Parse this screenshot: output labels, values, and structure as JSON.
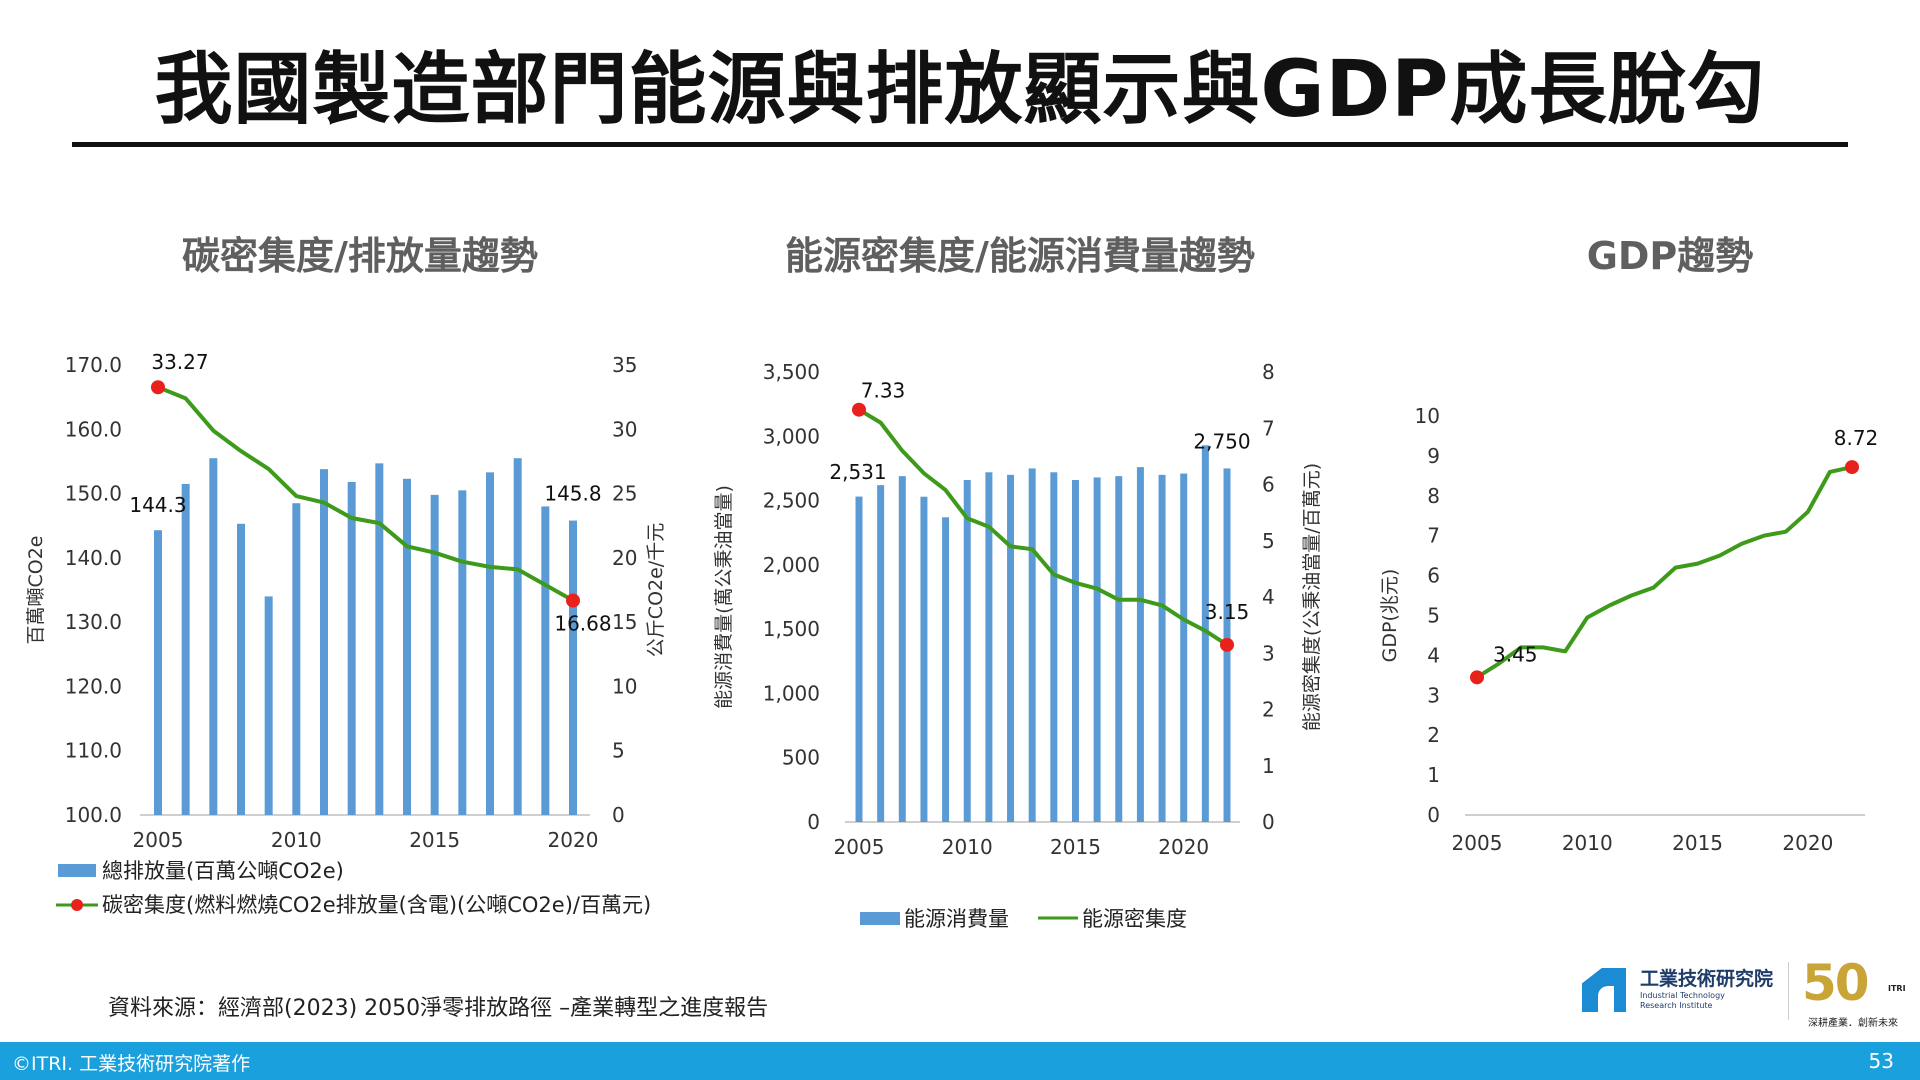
{
  "slide": {
    "title": "我國製造部門能源與排放顯示與GDP成長脫勾",
    "source_note": "資料來源：經濟部(2023) 2050淨零排放路徑 –產業轉型之進度報告",
    "footer_copyright": "©ITRI. 工業技術研究院著作",
    "page_number": "53",
    "colors": {
      "bar": "#5b9bd5",
      "line": "#3d9a1a",
      "marker": "#e8211c",
      "footer": "#1aa0dc",
      "heading": "#5f5f5f"
    }
  },
  "logos": {
    "itri_name_zh": "工業技術研究院",
    "itri_name_en": "Industrial Technology Research Institute",
    "anniversary_number": "50",
    "anniversary_itri": "ITRI",
    "anniversary_slogan": "深耕產業．創新未來"
  },
  "chart_data": [
    {
      "type": "bar+line",
      "title": "碳密集度/排放量趨勢",
      "ylabel_left": "百萬噸CO2e",
      "ylabel_right": "公斤CO2e/千元",
      "ylim_left": [
        100,
        170
      ],
      "ylim_right": [
        0,
        35
      ],
      "y_left_ticks": [
        "100.0",
        "110.0",
        "120.0",
        "130.0",
        "140.0",
        "150.0",
        "160.0",
        "170.0"
      ],
      "y_right_ticks": [
        "0",
        "5",
        "10",
        "15",
        "20",
        "25",
        "30",
        "35"
      ],
      "x_ticks": [
        "2005",
        "2010",
        "2015",
        "2020"
      ],
      "x": [
        2005,
        2006,
        2007,
        2008,
        2009,
        2010,
        2011,
        2012,
        2013,
        2014,
        2015,
        2016,
        2017,
        2018,
        2019,
        2020
      ],
      "series": [
        {
          "name": "總排放量(百萬公噸CO2e)",
          "kind": "bar",
          "axis": "left",
          "values": [
            144.3,
            151.5,
            155.5,
            145.3,
            134,
            148.5,
            153.8,
            151.8,
            154.7,
            152.3,
            149.8,
            150.5,
            153.3,
            155.5,
            148,
            145.8
          ]
        },
        {
          "name": "碳密集度(燃料燃燒CO2e排放量(含電)(公噸CO2e)/百萬元)",
          "kind": "line",
          "axis": "right",
          "values": [
            33.27,
            32.4,
            29.9,
            28.3,
            26.9,
            24.8,
            24.3,
            23.1,
            22.7,
            20.9,
            20.4,
            19.7,
            19.3,
            19.1,
            17.9,
            16.68
          ]
        }
      ],
      "data_labels": [
        {
          "text": "33.27",
          "series": 1,
          "index": 0
        },
        {
          "text": "144.3",
          "series": 0,
          "index": 0
        },
        {
          "text": "145.8",
          "series": 0,
          "index": 15
        },
        {
          "text": "16.68",
          "series": 1,
          "index": 15
        }
      ],
      "legend": "bottom-left"
    },
    {
      "type": "bar+line",
      "title": "能源密集度/能源消費量趨勢",
      "ylabel_left": "能源消費量(萬公秉油當量)",
      "ylabel_right": "能源密集度(公秉油當量/百萬元)",
      "ylim_left": [
        0,
        3500
      ],
      "ylim_right": [
        0,
        8
      ],
      "y_left_ticks": [
        "0",
        "500",
        "1,000",
        "1,500",
        "2,000",
        "2,500",
        "3,000",
        "3,500"
      ],
      "y_right_ticks": [
        "0",
        "1",
        "2",
        "3",
        "4",
        "5",
        "6",
        "7",
        "8"
      ],
      "x_ticks": [
        "2005",
        "2010",
        "2015",
        "2020"
      ],
      "x": [
        2005,
        2006,
        2007,
        2008,
        2009,
        2010,
        2011,
        2012,
        2013,
        2014,
        2015,
        2016,
        2017,
        2018,
        2019,
        2020,
        2021,
        2022
      ],
      "series": [
        {
          "name": "能源消費量",
          "kind": "bar",
          "axis": "left",
          "values": [
            2531,
            2620,
            2690,
            2530,
            2370,
            2660,
            2720,
            2700,
            2750,
            2720,
            2660,
            2680,
            2690,
            2760,
            2700,
            2710,
            2930,
            2750
          ]
        },
        {
          "name": "能源密集度",
          "kind": "line",
          "axis": "right",
          "values": [
            7.33,
            7.1,
            6.6,
            6.2,
            5.9,
            5.4,
            5.25,
            4.9,
            4.85,
            4.4,
            4.25,
            4.15,
            3.95,
            3.95,
            3.85,
            3.6,
            3.4,
            3.15
          ]
        }
      ],
      "data_labels": [
        {
          "text": "7.33",
          "series": 1,
          "index": 0
        },
        {
          "text": "2,531",
          "series": 0,
          "index": 0
        },
        {
          "text": "2,750",
          "series": 0,
          "index": 17
        },
        {
          "text": "3.15",
          "series": 1,
          "index": 17
        }
      ],
      "legend": "bottom"
    },
    {
      "type": "line",
      "title": "GDP趨勢",
      "ylabel": "GDP(兆元)",
      "ylim": [
        0,
        10
      ],
      "y_ticks": [
        "0",
        "1",
        "2",
        "3",
        "4",
        "5",
        "6",
        "7",
        "8",
        "9",
        "10"
      ],
      "x_ticks": [
        "2005",
        "2010",
        "2015",
        "2020"
      ],
      "x": [
        2005,
        2006,
        2007,
        2008,
        2009,
        2010,
        2011,
        2012,
        2013,
        2014,
        2015,
        2016,
        2017,
        2018,
        2019,
        2020,
        2021,
        2022
      ],
      "series": [
        {
          "name": "",
          "values": [
            3.45,
            3.8,
            4.2,
            4.2,
            4.1,
            4.95,
            5.25,
            5.5,
            5.7,
            6.2,
            6.3,
            6.5,
            6.8,
            7.0,
            7.1,
            7.6,
            8.6,
            8.72
          ]
        }
      ],
      "data_labels": [
        {
          "text": "3.45",
          "index": 0
        },
        {
          "text": "8.72",
          "index": 17
        }
      ]
    }
  ]
}
